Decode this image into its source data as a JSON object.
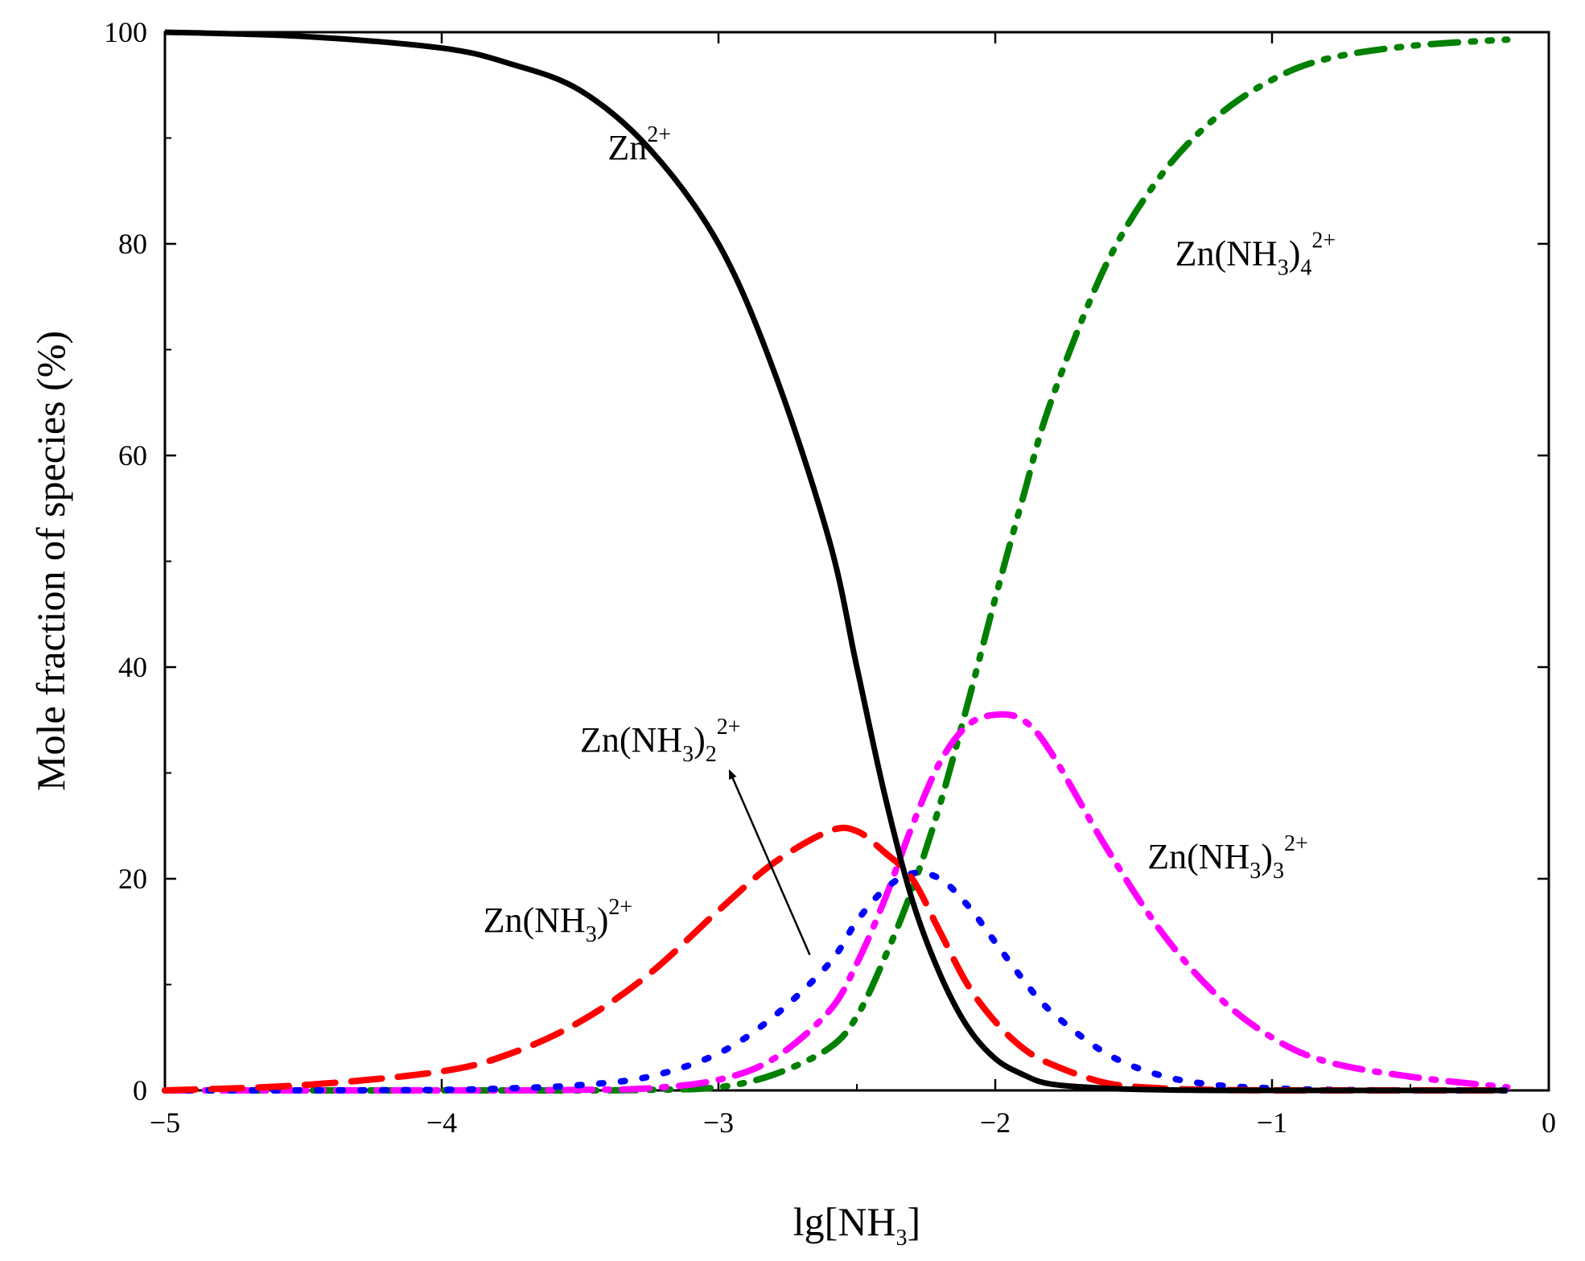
{
  "chart_data": {
    "type": "line",
    "title": "",
    "xlabel": "lg[NH3]",
    "ylabel": "Mole fraction of species (%)",
    "xlim": [
      -5,
      0
    ],
    "ylim": [
      0,
      100
    ],
    "xticks": [
      -5,
      -4,
      -3,
      -2,
      -1,
      0
    ],
    "xtick_labels": [
      "−5",
      "−4",
      "−3",
      "−2",
      "−1",
      "0"
    ],
    "yticks": [
      0,
      20,
      40,
      60,
      80,
      100
    ],
    "ytick_labels": [
      "0",
      "20",
      "40",
      "60",
      "80",
      "100"
    ],
    "grid": false,
    "x": [
      -5.0,
      -4.5,
      -4.0,
      -3.75,
      -3.5,
      -3.25,
      -3.0,
      -2.8,
      -2.6,
      -2.5,
      -2.4,
      -2.3,
      -2.2,
      -2.1,
      -2.0,
      -1.9,
      -1.8,
      -1.6,
      -1.4,
      -1.2,
      -1.0,
      -0.8,
      -0.5,
      -0.15
    ],
    "series": [
      {
        "name": "Zn2+",
        "color": "#000000",
        "style": "solid",
        "values": [
          100,
          99.6,
          98.5,
          97,
          94.5,
          89,
          80,
          68,
          52,
          40,
          28,
          18,
          11,
          6,
          3,
          1.5,
          0.6,
          0.2,
          0.05,
          0,
          0,
          0,
          0,
          0
        ]
      },
      {
        "name": "Zn(NH3)2+",
        "color": "#ff0000",
        "style": "dash",
        "values": [
          0,
          0.5,
          1.8,
          3.5,
          6.5,
          11,
          17,
          21.5,
          24.5,
          24.5,
          22.5,
          20,
          15,
          10,
          6.5,
          4,
          2.5,
          0.7,
          0.2,
          0.05,
          0,
          0,
          0,
          0
        ]
      },
      {
        "name": "Zn(NH3)2 2+",
        "color": "#0000ff",
        "style": "dot",
        "values": [
          0,
          0,
          0.05,
          0.2,
          0.5,
          1.3,
          3.5,
          7,
          12,
          16,
          19,
          20.5,
          20,
          17.5,
          14,
          10.5,
          7.5,
          3.5,
          1.4,
          0.5,
          0.2,
          0.05,
          0,
          0
        ]
      },
      {
        "name": "Zn(NH3)3 2+",
        "color": "#ff00ff",
        "style": "dashdot",
        "values": [
          0,
          0,
          0,
          0,
          0.05,
          0.2,
          1,
          3,
          7.5,
          12,
          18,
          25,
          31,
          34.5,
          35.5,
          35,
          32,
          23,
          15,
          9,
          5,
          2.7,
          1.3,
          0.3
        ]
      },
      {
        "name": "Zn(NH3)4 2+",
        "color": "#008000",
        "style": "dashdotdot",
        "values": [
          0,
          0,
          0,
          0,
          0,
          0.05,
          0.3,
          1.5,
          4,
          7,
          12.5,
          19,
          27,
          36.5,
          46.5,
          56,
          65,
          78,
          86.5,
          92,
          95.5,
          97.5,
          98.7,
          99.3
        ]
      }
    ],
    "series_labels": [
      {
        "series": "Zn2+",
        "base": "Zn",
        "sup": "2+",
        "anchor_x": -3.4,
        "anchor_y": 88
      },
      {
        "series": "Zn(NH3)4 2+",
        "base": "Zn(NH",
        "sub1": "3",
        "mid": ")",
        "sub2": "4",
        "sup": "2+",
        "anchor_x": -1.35,
        "anchor_y": 78
      },
      {
        "series": "Zn(NH3)2 2+",
        "base": "Zn(NH",
        "sub1": "3",
        "mid": ")",
        "sub2": "2",
        "sup": "2+",
        "anchor_x": -3.5,
        "anchor_y": 32
      },
      {
        "series": "Zn(NH3)3 2+",
        "base": "Zn(NH",
        "sub1": "3",
        "mid": ")",
        "sub2": "3",
        "sup": "2+",
        "anchor_x": -1.45,
        "anchor_y": 21
      },
      {
        "series": "Zn(NH3)2+",
        "base": "Zn(NH",
        "sub1": "3",
        "mid": ")",
        "sub2": "",
        "sup": "2+",
        "anchor_x": -3.85,
        "anchor_y": 15
      }
    ],
    "annotation_arrow": {
      "from": [
        -2.67,
        12.8
      ],
      "to": [
        -2.96,
        30.2
      ],
      "points_to": "Zn(NH3)2 2+"
    }
  }
}
